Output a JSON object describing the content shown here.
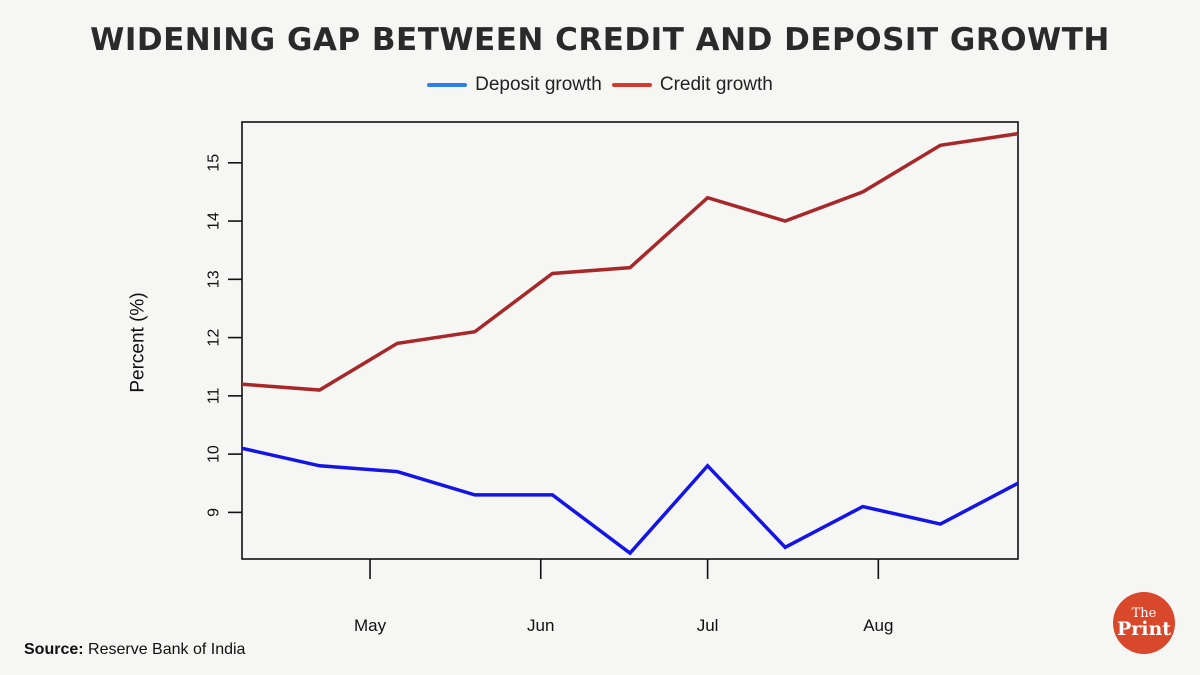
{
  "header": {
    "title": "WIDENING GAP BETWEEN CREDIT AND DEPOSIT GROWTH"
  },
  "colors": {
    "deposit": "#1414e6",
    "credit": "#a8282a",
    "deposit_legend": "#2f7fea",
    "credit_legend": "#d23b2f"
  },
  "chart_data": {
    "type": "line",
    "title": "WIDENING GAP BETWEEN CREDIT AND DEPOSIT GROWTH",
    "xlabel": "",
    "ylabel": "Percent (%)",
    "x": [
      0,
      1,
      2,
      3,
      4,
      5,
      6,
      7,
      8,
      9,
      10
    ],
    "xlim": [
      0,
      10
    ],
    "ylim": [
      8.2,
      15.7
    ],
    "yticks": [
      9,
      10,
      11,
      12,
      13,
      14,
      15
    ],
    "xticks": [
      {
        "pos": 1.65,
        "label": "May"
      },
      {
        "pos": 3.85,
        "label": "Jun"
      },
      {
        "pos": 6.0,
        "label": "Jul"
      },
      {
        "pos": 8.2,
        "label": "Aug"
      }
    ],
    "series": [
      {
        "name": "Deposit growth",
        "values": [
          10.1,
          9.8,
          9.7,
          9.3,
          9.3,
          8.3,
          9.8,
          8.4,
          9.1,
          8.8,
          9.5
        ]
      },
      {
        "name": "Credit growth",
        "values": [
          11.2,
          11.1,
          11.9,
          12.1,
          13.1,
          13.2,
          14.4,
          14.0,
          14.5,
          15.3,
          15.5
        ]
      }
    ],
    "legend_position": "top-center",
    "grid": false
  },
  "footer": {
    "source_label": "Source:",
    "source_text": " Reserve Bank of India"
  },
  "logo": {
    "the": "The",
    "print": "Print"
  }
}
